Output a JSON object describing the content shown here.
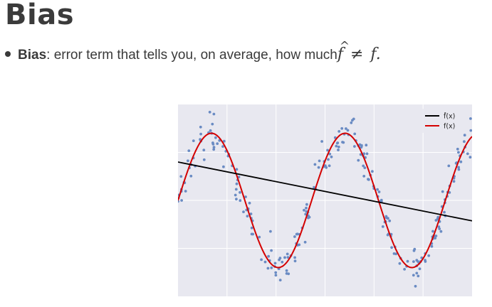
{
  "slide": {
    "title": "Bias",
    "bullet_term": "Bias",
    "bullet_text": ": error term that tells you, on average, how much ",
    "math_lhs": "f",
    "math_hat": "^",
    "math_op": "≠",
    "math_rhs": "f",
    "math_end": "."
  },
  "chart_data": {
    "type": "line",
    "title": "",
    "xlabel": "",
    "ylabel": "",
    "xlim": [
      0,
      1
    ],
    "ylim": [
      -1.5,
      1.5
    ],
    "grid": true,
    "legend_position": "top-right",
    "series": [
      {
        "name": "f̂(x)",
        "color": "#000000",
        "kind": "line",
        "intercept": 0.6,
        "slope": -0.92
      },
      {
        "name": "f(x)",
        "color": "#d40000",
        "kind": "line",
        "amplitude": 1.05,
        "frequency": 2.2,
        "phase": 0.0
      },
      {
        "name": "",
        "color": "#6a8bc3",
        "kind": "scatter",
        "n_points": 260,
        "noise": 0.15
      }
    ],
    "legend": [
      {
        "label": "f̂(x)",
        "color": "#000000"
      },
      {
        "label": "f(x)",
        "color": "#d40000"
      }
    ]
  }
}
